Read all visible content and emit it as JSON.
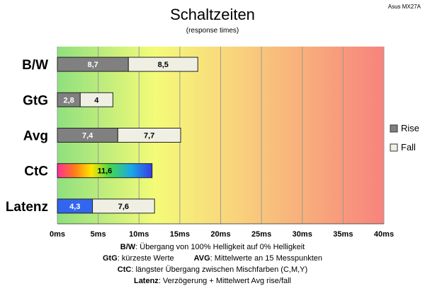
{
  "chart_data": {
    "type": "bar",
    "orientation": "horizontal",
    "stacked": true,
    "title": "Schaltzeiten",
    "subtitle": "(response times)",
    "watermark": "Asus MX27A",
    "categories": [
      "B/W",
      "GtG",
      "Avg",
      "CtC",
      "Latenz"
    ],
    "series": [
      {
        "name": "Rise",
        "values": [
          8.7,
          2.8,
          7.4,
          11.6,
          4.3
        ],
        "labels": [
          "8,7",
          "2,8",
          "7,4",
          "11,6",
          "4,3"
        ],
        "color": "#808080"
      },
      {
        "name": "Fall",
        "values": [
          8.5,
          4,
          7.7,
          null,
          7.6
        ],
        "labels": [
          "8,5",
          "4",
          "7,7",
          "",
          "7,6"
        ],
        "color": "#efefe4"
      }
    ],
    "special_colors": {
      "CtC": "rainbow",
      "Latenz_rise": "#3366ee"
    },
    "xlim": [
      0,
      40
    ],
    "xticks": [
      0,
      5,
      10,
      15,
      20,
      25,
      30,
      35,
      40
    ],
    "xtick_labels": [
      "0ms",
      "5ms",
      "10ms",
      "15ms",
      "20ms",
      "25ms",
      "30ms",
      "35ms",
      "40ms"
    ],
    "grid": true,
    "background": "gradient green-yellow-red",
    "legend_position": "right"
  },
  "footer": {
    "line1_key": "B/W",
    "line1_text": ":  Übergang von 100% Helligkeit auf 0% Helligkeit",
    "line2_key": "GtG",
    "line2_text": ": kürzeste  Werte",
    "line2b_key": "AVG",
    "line2b_text": ": Mittelwerte  an 15 Messpunkten",
    "line3_key": "CtC",
    "line3_text": ": längster Übergang  zwischen Mischfarben (C,M,Y)",
    "line4_key": "Latenz",
    "line4_text": ": Verzögerung  + Mittelwert Avg rise/fall"
  }
}
